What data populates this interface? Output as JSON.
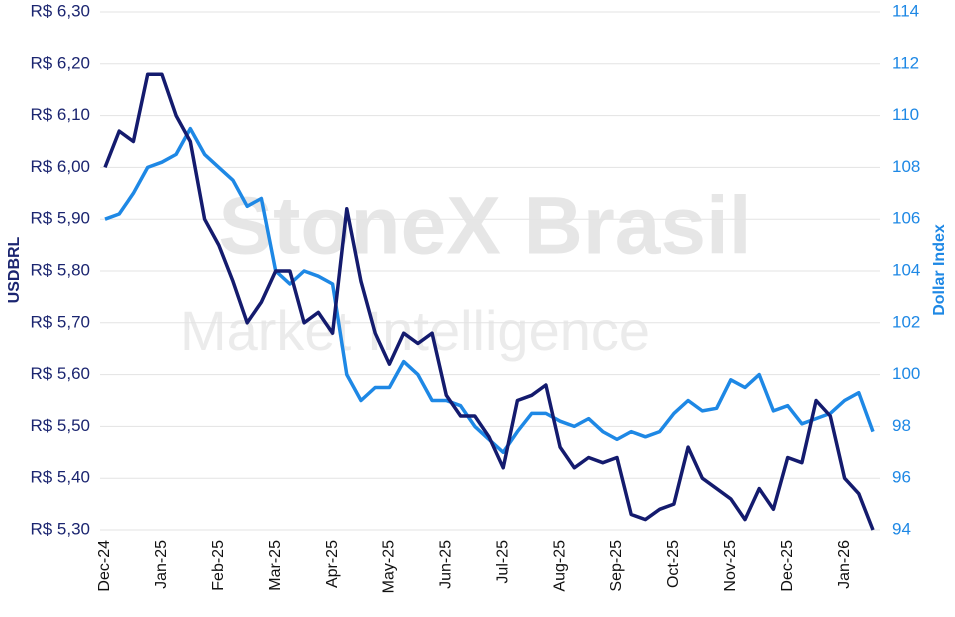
{
  "chart_data": {
    "type": "line",
    "watermark": "StoneX Brasil",
    "watermark_subtitle": "Market Intelligence",
    "y_label": "USDBRL",
    "y2_label": "Dollar Index",
    "x": [
      0,
      0.25,
      0.5,
      0.75,
      1,
      1.25,
      1.5,
      1.75,
      2,
      2.25,
      2.5,
      2.75,
      3,
      3.25,
      3.5,
      3.75,
      4,
      4.25,
      4.5,
      4.75,
      5,
      5.25,
      5.5,
      5.75,
      6,
      6.25,
      6.5,
      6.75,
      7,
      7.25,
      7.5,
      7.75,
      8,
      8.25,
      8.5,
      8.75,
      9,
      9.25,
      9.5,
      9.75,
      10,
      10.25,
      10.5,
      10.75,
      11,
      11.25,
      11.5,
      11.75,
      12,
      12.25,
      12.5,
      12.75,
      13,
      13.25,
      13.5
    ],
    "xlim": [
      0,
      13.5
    ],
    "xticks": [
      {
        "value": 0,
        "label": "Dec-24"
      },
      {
        "value": 1,
        "label": "Jan-25"
      },
      {
        "value": 2,
        "label": "Feb-25"
      },
      {
        "value": 3,
        "label": "Mar-25"
      },
      {
        "value": 4,
        "label": "Apr-25"
      },
      {
        "value": 5,
        "label": "May-25"
      },
      {
        "value": 6,
        "label": "Jun-25"
      },
      {
        "value": 7,
        "label": "Jul-25"
      },
      {
        "value": 8,
        "label": "Aug-25"
      },
      {
        "value": 9,
        "label": "Sep-25"
      },
      {
        "value": 10,
        "label": "Oct-25"
      },
      {
        "value": 11,
        "label": "Nov-25"
      },
      {
        "value": 12,
        "label": "Dec-25"
      },
      {
        "value": 13,
        "label": "Jan-26"
      }
    ],
    "ylim": [
      5.3,
      6.3
    ],
    "yticks": [
      {
        "value": 5.3,
        "label": "R$ 5,30"
      },
      {
        "value": 5.4,
        "label": "R$ 5,40"
      },
      {
        "value": 5.5,
        "label": "R$ 5,50"
      },
      {
        "value": 5.6,
        "label": "R$ 5,60"
      },
      {
        "value": 5.7,
        "label": "R$ 5,70"
      },
      {
        "value": 5.8,
        "label": "R$ 5,80"
      },
      {
        "value": 5.9,
        "label": "R$ 5,90"
      },
      {
        "value": 6.0,
        "label": "R$ 6,00"
      },
      {
        "value": 6.1,
        "label": "R$ 6,10"
      },
      {
        "value": 6.2,
        "label": "R$ 6,20"
      },
      {
        "value": 6.3,
        "label": "R$ 6,30"
      }
    ],
    "y2lim": [
      94,
      114
    ],
    "y2ticks": [
      94,
      96,
      98,
      100,
      102,
      104,
      106,
      108,
      110,
      112,
      114
    ],
    "grid": true,
    "y_color": "#1b2570",
    "y2_color": "#1e88e5",
    "series": [
      {
        "name": "USDBRL",
        "color": "#141b6e",
        "axis": "y",
        "values": [
          6.0,
          6.07,
          6.05,
          6.18,
          6.18,
          6.1,
          6.05,
          5.9,
          5.85,
          5.78,
          5.7,
          5.74,
          5.8,
          5.8,
          5.7,
          5.72,
          5.68,
          5.92,
          5.78,
          5.68,
          5.62,
          5.68,
          5.66,
          5.68,
          5.56,
          5.52,
          5.52,
          5.48,
          5.42,
          5.55,
          5.56,
          5.58,
          5.46,
          5.42,
          5.44,
          5.43,
          5.44,
          5.33,
          5.32,
          5.34,
          5.35,
          5.46,
          5.4,
          5.38,
          5.36,
          5.32,
          5.38,
          5.34,
          5.44,
          5.43,
          5.55,
          5.52,
          5.4,
          5.37,
          5.3
        ]
      },
      {
        "name": "Dollar Index",
        "color": "#1e88e5",
        "axis": "y2",
        "values": [
          106,
          106.2,
          107,
          108,
          108.2,
          108.5,
          109.5,
          108.5,
          108,
          107.5,
          106.5,
          106.8,
          104,
          103.5,
          104,
          103.8,
          103.5,
          100,
          99,
          99.5,
          99.5,
          100.5,
          100,
          99,
          99,
          98.8,
          98,
          97.5,
          97,
          97.8,
          98.5,
          98.5,
          98.2,
          98,
          98.3,
          97.8,
          97.5,
          97.8,
          97.6,
          97.8,
          98.5,
          99,
          98.6,
          98.7,
          99.8,
          99.5,
          100,
          98.6,
          98.8,
          98.1,
          98.3,
          98.5,
          99,
          99.3,
          97.8
        ]
      }
    ]
  }
}
